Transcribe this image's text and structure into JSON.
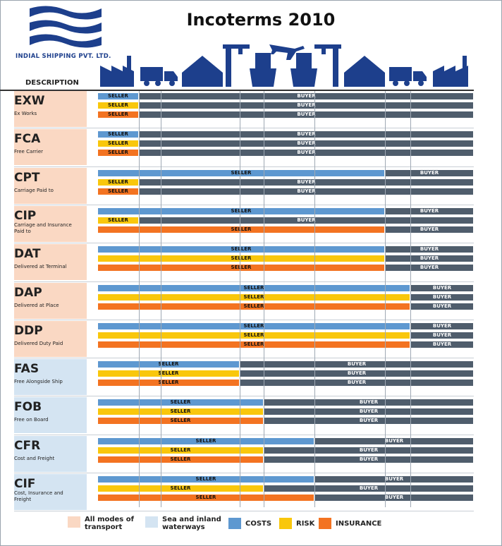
{
  "header": {
    "title": "Incoterms 2010",
    "company": "INDIAL SHIPPING PVT. LTD.",
    "description_label": "DESCRIPTION"
  },
  "colors": {
    "costs": "#5e98d0",
    "risk": "#f9c70c",
    "insurance": "#f37321",
    "buyer": "#4f5d6c",
    "all_modes_bg": "#fad8c3",
    "sea_bg": "#d4e4f2",
    "logo_blue": "#1d3f8c"
  },
  "transport_icons": [
    "factory-icon",
    "truck-icon",
    "warehouse-icon",
    "port-crane-icon",
    "ship-icon",
    "airplane-icon",
    "ship-icon",
    "port-crane-icon",
    "warehouse-icon",
    "truck-icon",
    "factory-icon"
  ],
  "terms": [
    {
      "code": "EXW",
      "name": "Ex Works",
      "mode": "all",
      "bars": [
        {
          "type": "costs",
          "label": "SELLER",
          "buyer_label": "BUYER",
          "split": 0
        },
        {
          "type": "risk",
          "label": "SELLER",
          "buyer_label": "BUYER",
          "split": 0
        },
        {
          "type": "insurance",
          "label": "SELLER",
          "buyer_label": "BUYER",
          "split": 0
        }
      ]
    },
    {
      "code": "FCA",
      "name": "Free Carrier",
      "mode": "all",
      "bars": [
        {
          "type": "costs",
          "label": "SELLER",
          "buyer_label": "BUYER",
          "split": 1
        },
        {
          "type": "risk",
          "label": "SELLER",
          "buyer_label": "BUYER",
          "split": 1
        },
        {
          "type": "insurance",
          "label": "SELLER",
          "buyer_label": "BUYER",
          "split": 1
        }
      ]
    },
    {
      "code": "CPT",
      "name": "Carriage Paid to",
      "mode": "all",
      "bars": [
        {
          "type": "costs",
          "label": "SELLER",
          "buyer_label": "BUYER",
          "split": 6
        },
        {
          "type": "risk",
          "label": "SELLER",
          "buyer_label": "BUYER",
          "split": 1
        },
        {
          "type": "insurance",
          "label": "SELLER",
          "buyer_label": "BUYER",
          "split": 1
        }
      ]
    },
    {
      "code": "CIP",
      "name": "Carriage and Insurance Paid to",
      "mode": "all",
      "bars": [
        {
          "type": "costs",
          "label": "SELLER",
          "buyer_label": "BUYER",
          "split": 6
        },
        {
          "type": "risk",
          "label": "SELLER",
          "buyer_label": "BUYER",
          "split": 1
        },
        {
          "type": "insurance",
          "label": "SELLER",
          "buyer_label": "BUYER",
          "split": 6
        }
      ]
    },
    {
      "code": "DAT",
      "name": "Delivered at Terminal",
      "mode": "all",
      "bars": [
        {
          "type": "costs",
          "label": "SELLER",
          "buyer_label": "BUYER",
          "split": 6
        },
        {
          "type": "risk",
          "label": "SELLER",
          "buyer_label": "BUYER",
          "split": 6
        },
        {
          "type": "insurance",
          "label": "SELLER",
          "buyer_label": "BUYER",
          "split": 6
        }
      ]
    },
    {
      "code": "DAP",
      "name": "Delivered at Place",
      "mode": "all",
      "bars": [
        {
          "type": "costs",
          "label": "SELLER",
          "buyer_label": "BUYER",
          "split": 7
        },
        {
          "type": "risk",
          "label": "SELLER",
          "buyer_label": "BUYER",
          "split": 7
        },
        {
          "type": "insurance",
          "label": "SELLER",
          "buyer_label": "BUYER",
          "split": 7
        }
      ]
    },
    {
      "code": "DDP",
      "name": "Delivered Duty Paid",
      "mode": "all",
      "bars": [
        {
          "type": "costs",
          "label": "SELLER",
          "buyer_label": "BUYER",
          "split": 7
        },
        {
          "type": "risk",
          "label": "SELLER",
          "buyer_label": "BUYER",
          "split": 7
        },
        {
          "type": "insurance",
          "label": "SELLER",
          "buyer_label": "BUYER",
          "split": 7
        }
      ]
    },
    {
      "code": "FAS",
      "name": "Free Alongside Ship",
      "mode": "sea",
      "bars": [
        {
          "type": "costs",
          "label": "SELLER",
          "buyer_label": "BUYER",
          "split": 3
        },
        {
          "type": "risk",
          "label": "SELLER",
          "buyer_label": "BUYER",
          "split": 3
        },
        {
          "type": "insurance",
          "label": "SELLER",
          "buyer_label": "BUYER",
          "split": 3
        }
      ]
    },
    {
      "code": "FOB",
      "name": "Free on Board",
      "mode": "sea",
      "bars": [
        {
          "type": "costs",
          "label": "SELLER",
          "buyer_label": "BUYER",
          "split": 4
        },
        {
          "type": "risk",
          "label": "SELLER",
          "buyer_label": "BUYER",
          "split": 4
        },
        {
          "type": "insurance",
          "label": "SELLER",
          "buyer_label": "BUYER",
          "split": 4
        }
      ]
    },
    {
      "code": "CFR",
      "name": "Cost and Freight",
      "mode": "sea",
      "bars": [
        {
          "type": "costs",
          "label": "SELLER",
          "buyer_label": "BUYER",
          "split": 5
        },
        {
          "type": "risk",
          "label": "SELLER",
          "buyer_label": "BUYER",
          "split": 4
        },
        {
          "type": "insurance",
          "label": "SELLER",
          "buyer_label": "BUYER",
          "split": 4
        }
      ]
    },
    {
      "code": "CIF",
      "name": "Cost, Insurance and Freight",
      "mode": "sea",
      "bars": [
        {
          "type": "costs",
          "label": "SELLER",
          "buyer_label": "BUYER",
          "split": 5
        },
        {
          "type": "risk",
          "label": "SELLER",
          "buyer_label": "BUYER",
          "split": 4
        },
        {
          "type": "insurance",
          "label": "SELLER",
          "buyer_label": "BUYER",
          "split": 5
        }
      ]
    }
  ],
  "legend": {
    "all_modes": "All modes of transport",
    "sea": "Sea and inland waterways",
    "costs": "COSTS",
    "risk": "RISK",
    "insurance": "INSURANCE"
  }
}
